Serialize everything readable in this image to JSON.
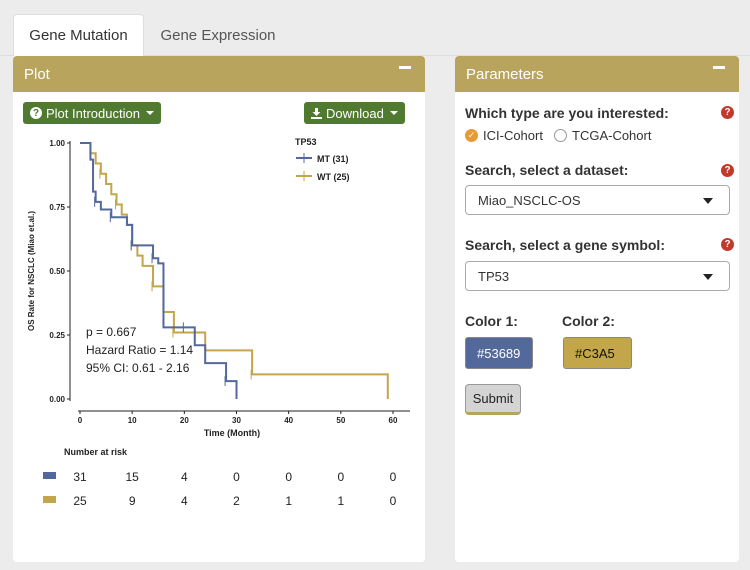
{
  "tabs": [
    {
      "label": "Gene Mutation",
      "active": true
    },
    {
      "label": "Gene Expression",
      "active": false
    }
  ],
  "plot_panel": {
    "title": "Plot",
    "intro_button": "Plot Introduction",
    "download_button": "Download"
  },
  "params_panel": {
    "title": "Parameters",
    "type_label": "Which type are you interested:",
    "radio_options": [
      {
        "label": "ICI-Cohort",
        "checked": true
      },
      {
        "label": "TCGA-Cohort",
        "checked": false
      }
    ],
    "dataset_label": "Search, select a dataset:",
    "dataset_value": "Miao_NSCLC-OS",
    "gene_label": "Search, select a gene symbol:",
    "gene_value": "TP53",
    "color1_label": "Color 1:",
    "color1_value": "#53689",
    "color1_hex": "#53689B",
    "color2_label": "Color 2:",
    "color2_value": "#C3A5",
    "color2_hex": "#C3A54A",
    "submit_label": "Submit"
  },
  "colors": {
    "accent": "#b8a45c",
    "button_green": "#4f7a2f",
    "help_red": "#c0392b",
    "radio_orange": "#e89b32"
  },
  "chart_data": {
    "type": "line",
    "xlabel": "Time (Month)",
    "ylabel": "OS Rate for NSCLC (Miao et.al.)",
    "xlim": [
      0,
      60
    ],
    "ylim": [
      0,
      1
    ],
    "xticks": [
      "0",
      "10",
      "20",
      "30",
      "40",
      "50",
      "60"
    ],
    "yticks": [
      "0.00",
      "0.25",
      "0.50",
      "0.75",
      "1.00"
    ],
    "legend_title": "TP53",
    "legend_position": "top-right",
    "series": [
      {
        "name": "MT (31)",
        "color": "#53689B",
        "steps": [
          [
            0,
            1.0
          ],
          [
            2,
            0.935
          ],
          [
            2.5,
            0.81
          ],
          [
            3,
            0.77
          ],
          [
            4,
            0.74
          ],
          [
            5,
            0.74
          ],
          [
            6,
            0.71
          ],
          [
            8,
            0.71
          ],
          [
            9,
            0.68
          ],
          [
            10,
            0.6
          ],
          [
            11,
            0.6
          ],
          [
            13,
            0.6
          ],
          [
            14,
            0.55
          ],
          [
            15,
            0.53
          ],
          [
            16,
            0.28
          ],
          [
            20,
            0.28
          ],
          [
            22,
            0.21
          ],
          [
            24,
            0.14
          ],
          [
            28,
            0.07
          ],
          [
            30,
            0.0
          ]
        ]
      },
      {
        "name": "WT (25)",
        "color": "#C3A54A",
        "steps": [
          [
            0,
            1.0
          ],
          [
            2,
            0.96
          ],
          [
            3,
            0.92
          ],
          [
            4,
            0.88
          ],
          [
            5,
            0.84
          ],
          [
            6,
            0.8
          ],
          [
            7,
            0.76
          ],
          [
            8,
            0.72
          ],
          [
            9,
            0.68
          ],
          [
            10,
            0.6
          ],
          [
            11,
            0.56
          ],
          [
            12,
            0.52
          ],
          [
            14,
            0.44
          ],
          [
            15,
            0.44
          ],
          [
            16,
            0.34
          ],
          [
            18,
            0.26
          ],
          [
            24,
            0.19
          ],
          [
            26,
            0.19
          ],
          [
            33,
            0.096
          ],
          [
            59,
            0.0
          ]
        ]
      }
    ],
    "annotations": [
      "p = 0.667",
      "Hazard Ratio = 1.14",
      "95% CI: 0.61 - 2.16"
    ],
    "risk_table": {
      "title": "Number at risk",
      "times": [
        0,
        10,
        20,
        30,
        40,
        50,
        60
      ],
      "rows": [
        {
          "name": "MT",
          "color": "#53689B",
          "values": [
            "31",
            "15",
            "4",
            "0",
            "0",
            "0",
            "0"
          ]
        },
        {
          "name": "WT",
          "color": "#C3A54A",
          "values": [
            "25",
            "9",
            "4",
            "2",
            "1",
            "1",
            "0"
          ]
        }
      ]
    }
  }
}
